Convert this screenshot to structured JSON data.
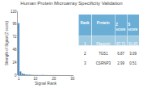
{
  "chart_data": [
    {
      "type": "bar",
      "title": "Human Protein Microarray Specificity Validation",
      "xlabel": "Signal Rank",
      "ylabel": "Strength of Signal (Z score)",
      "x": [
        1,
        2,
        3,
        4,
        5,
        6,
        7,
        8,
        9,
        10,
        11,
        12,
        13,
        14,
        15,
        16,
        17,
        18,
        19,
        20,
        21,
        22,
        23,
        24,
        25,
        26,
        27,
        28,
        29,
        30
      ],
      "values": [
        97.71,
        6.87,
        2.99,
        1.8,
        1.2,
        0.9,
        0.7,
        0.5,
        0.4,
        0.35,
        0.3,
        0.27,
        0.24,
        0.22,
        0.2,
        0.18,
        0.16,
        0.15,
        0.14,
        0.13,
        0.12,
        0.11,
        0.1,
        0.09,
        0.08,
        0.07,
        0.06,
        0.05,
        0.04,
        0.03
      ],
      "color": "#3a7fc1",
      "xlim": [
        0.5,
        30.5
      ],
      "xticks": [
        1,
        10,
        20,
        30
      ],
      "ylim": [
        0,
        120
      ],
      "yticks": [
        0,
        24,
        48,
        72,
        96,
        120
      ],
      "grid": false
    },
    {
      "type": "table",
      "columns": [
        "Rank",
        "Protein",
        "Z score",
        "S score"
      ],
      "rows": [
        [
          "1",
          "Filaggrin",
          "97.71",
          "91.83"
        ],
        [
          "2",
          "TG51",
          "6.87",
          "3.09"
        ],
        [
          "3",
          "CSRNP3",
          "2.99",
          "0.51"
        ]
      ],
      "colors": [
        "#6aaed6",
        "#9ecae1",
        "#ffffff",
        "#ffffff"
      ]
    }
  ]
}
